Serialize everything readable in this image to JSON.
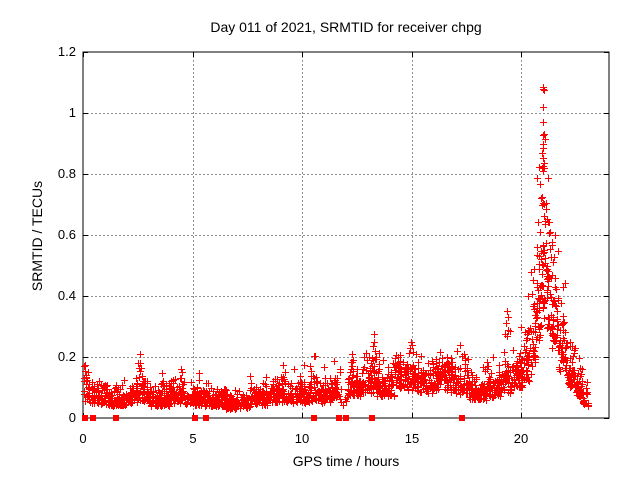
{
  "chart_data": {
    "type": "scatter",
    "title": "Day 011 of 2021, SRMTID for receiver chpg",
    "xlabel": "GPS time / hours",
    "ylabel": "SRMTID / TECUs",
    "xlim": [
      0,
      24
    ],
    "ylim": [
      0,
      1.2
    ],
    "xticks": [
      0,
      5,
      10,
      15,
      20
    ],
    "xticklabels": [
      "0",
      "5",
      "10",
      "15",
      "20"
    ],
    "yticks": [
      0,
      0.2,
      0.4,
      0.6,
      0.8,
      1,
      1.2
    ],
    "yticklabels": [
      "0",
      "0.2",
      "0.4",
      "0.6",
      "0.8",
      "1",
      "1.2"
    ],
    "grid": true,
    "grid_style": "dashed",
    "legend": "none",
    "marker": "plus",
    "zero_marker": "filled-square",
    "colors": {
      "points": "#ff0000",
      "grid": "#909090",
      "axis": "#000000",
      "background": "#ffffff",
      "text": "#000000"
    },
    "seed": 7,
    "description": "Dense red plus markers: low band ~0.03-0.15 TECUs hours 0-12, choppier band ~0.05-0.25 hours 12-20, sharp peak to ~1.08 at hour 21, decay to ~0.05 by hour 23. Red filled squares mark zero values.",
    "bands": [
      [
        0.02,
        0.3,
        25,
        0.055,
        0.05
      ],
      [
        0.3,
        1.0,
        60,
        0.045,
        0.035
      ],
      [
        1.0,
        2.0,
        90,
        0.04,
        0.033
      ],
      [
        2.0,
        2.5,
        45,
        0.05,
        0.04
      ],
      [
        2.5,
        3.0,
        45,
        0.055,
        0.05
      ],
      [
        3.0,
        4.0,
        90,
        0.04,
        0.033
      ],
      [
        4.0,
        4.7,
        62,
        0.05,
        0.042
      ],
      [
        4.7,
        5.5,
        70,
        0.04,
        0.03
      ],
      [
        5.5,
        6.5,
        90,
        0.038,
        0.03
      ],
      [
        6.5,
        7.6,
        95,
        0.03,
        0.026
      ],
      [
        7.6,
        8.5,
        80,
        0.04,
        0.034
      ],
      [
        8.5,
        9.5,
        90,
        0.05,
        0.04
      ],
      [
        9.5,
        10.5,
        90,
        0.05,
        0.04
      ],
      [
        10.5,
        11.3,
        70,
        0.05,
        0.045
      ],
      [
        11.3,
        11.75,
        38,
        0.06,
        0.05
      ],
      [
        11.75,
        12.1,
        8,
        0.04,
        0.03
      ],
      [
        12.1,
        12.7,
        55,
        0.07,
        0.05
      ],
      [
        12.7,
        13.4,
        60,
        0.08,
        0.065
      ],
      [
        13.4,
        14.2,
        70,
        0.07,
        0.05
      ],
      [
        14.2,
        15.2,
        90,
        0.09,
        0.06
      ],
      [
        15.2,
        16.0,
        70,
        0.08,
        0.05
      ],
      [
        16.0,
        16.8,
        70,
        0.09,
        0.055
      ],
      [
        16.8,
        17.6,
        70,
        0.08,
        0.05
      ],
      [
        17.6,
        18.4,
        70,
        0.06,
        0.045
      ],
      [
        18.4,
        19.2,
        70,
        0.07,
        0.05
      ],
      [
        19.2,
        19.6,
        35,
        0.08,
        0.08
      ],
      [
        19.6,
        20.1,
        48,
        0.1,
        0.06
      ],
      [
        20.1,
        20.45,
        36,
        0.12,
        0.1
      ],
      [
        20.45,
        20.7,
        30,
        0.17,
        0.15
      ],
      [
        20.7,
        20.9,
        34,
        0.25,
        0.25
      ],
      [
        20.9,
        21.15,
        44,
        0.32,
        0.3
      ],
      [
        21.15,
        21.4,
        36,
        0.28,
        0.22
      ],
      [
        21.4,
        21.7,
        36,
        0.22,
        0.14
      ],
      [
        21.7,
        22.1,
        42,
        0.15,
        0.1
      ],
      [
        22.1,
        22.5,
        40,
        0.1,
        0.07
      ],
      [
        22.5,
        22.8,
        30,
        0.07,
        0.05
      ],
      [
        22.8,
        23.05,
        20,
        0.04,
        0.035
      ]
    ],
    "outliers": [
      [
        0.06,
        0.12
      ],
      [
        0.08,
        0.155
      ],
      [
        0.1,
        0.175
      ],
      [
        0.13,
        0.14
      ],
      [
        2.58,
        0.18
      ],
      [
        2.6,
        0.21
      ],
      [
        2.66,
        0.165
      ],
      [
        4.45,
        0.16
      ],
      [
        4.52,
        0.15
      ],
      [
        10.35,
        0.17
      ],
      [
        10.42,
        0.155
      ],
      [
        13.24,
        0.235
      ],
      [
        13.28,
        0.25
      ],
      [
        13.34,
        0.22
      ],
      [
        14.92,
        0.23
      ],
      [
        14.97,
        0.25
      ],
      [
        15.02,
        0.24
      ],
      [
        15.07,
        0.215
      ],
      [
        16.3,
        0.215
      ],
      [
        19.32,
        0.31
      ],
      [
        19.35,
        0.35
      ],
      [
        19.37,
        0.33
      ],
      [
        19.39,
        0.29
      ],
      [
        19.35,
        0.27
      ],
      [
        19.98,
        0.3
      ],
      [
        20.95,
        0.87
      ],
      [
        20.96,
        0.82
      ],
      [
        20.97,
        0.9
      ],
      [
        20.98,
        1.085
      ],
      [
        20.99,
        0.97
      ],
      [
        21.0,
        1.08
      ],
      [
        21.0,
        1.02
      ],
      [
        21.0,
        0.885
      ],
      [
        21.0,
        0.81
      ],
      [
        21.02,
        1.075
      ],
      [
        21.03,
        0.93
      ],
      [
        21.04,
        0.835
      ]
    ],
    "zero_markers": [
      0.09,
      0.45,
      1.5,
      5.1,
      5.6,
      10.54,
      11.7,
      11.99,
      13.2,
      17.28
    ]
  }
}
